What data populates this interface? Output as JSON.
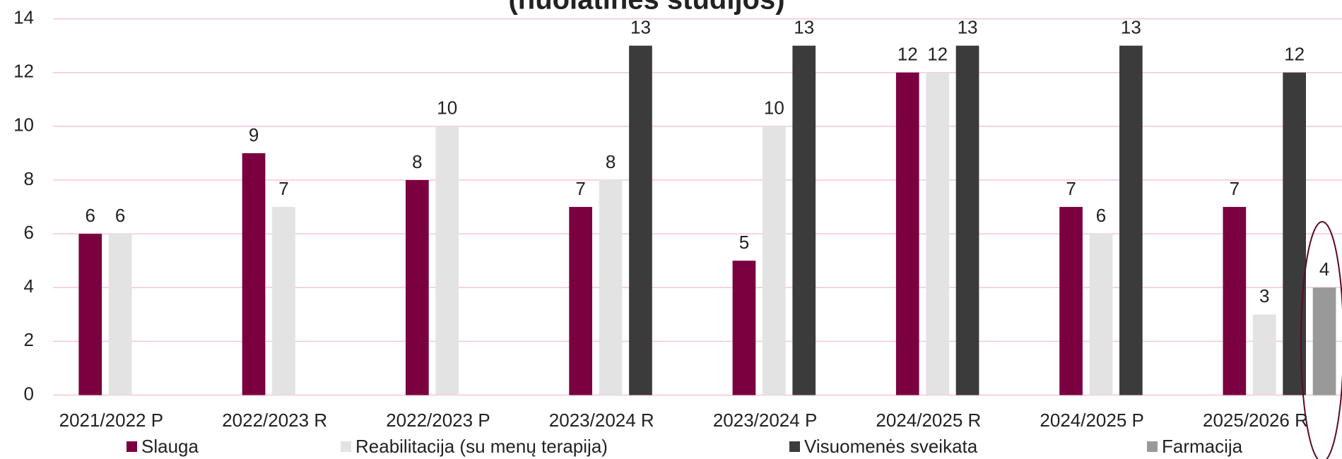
{
  "chart_data": {
    "type": "bar",
    "title": "(nuolatinės studijos)",
    "categories": [
      "2021/2022 P",
      "2022/2023 R",
      "2022/2023 P",
      "2023/2024 R",
      "2023/2024 P",
      "2024/2025 R",
      "2024/2025 P",
      "2025/2026 R"
    ],
    "series": [
      {
        "name": "Slauga",
        "color": "#7a0040",
        "values": [
          6,
          9,
          8,
          7,
          5,
          12,
          7,
          7
        ]
      },
      {
        "name": "Reabilitacija (su menų terapija)",
        "color": "#e3e3e3",
        "values": [
          6,
          7,
          10,
          8,
          10,
          12,
          6,
          3
        ]
      },
      {
        "name": "Visuomenės sveikata",
        "color": "#3b3b3b",
        "values": [
          null,
          null,
          null,
          13,
          13,
          13,
          13,
          12
        ]
      },
      {
        "name": "Farmacija",
        "color": "#999999",
        "values": [
          null,
          null,
          null,
          null,
          null,
          null,
          null,
          4
        ]
      }
    ],
    "ylim": [
      0,
      14
    ],
    "yticks": [
      0,
      2,
      4,
      6,
      8,
      10,
      12,
      14
    ],
    "grid": true,
    "legend": "bottom"
  }
}
